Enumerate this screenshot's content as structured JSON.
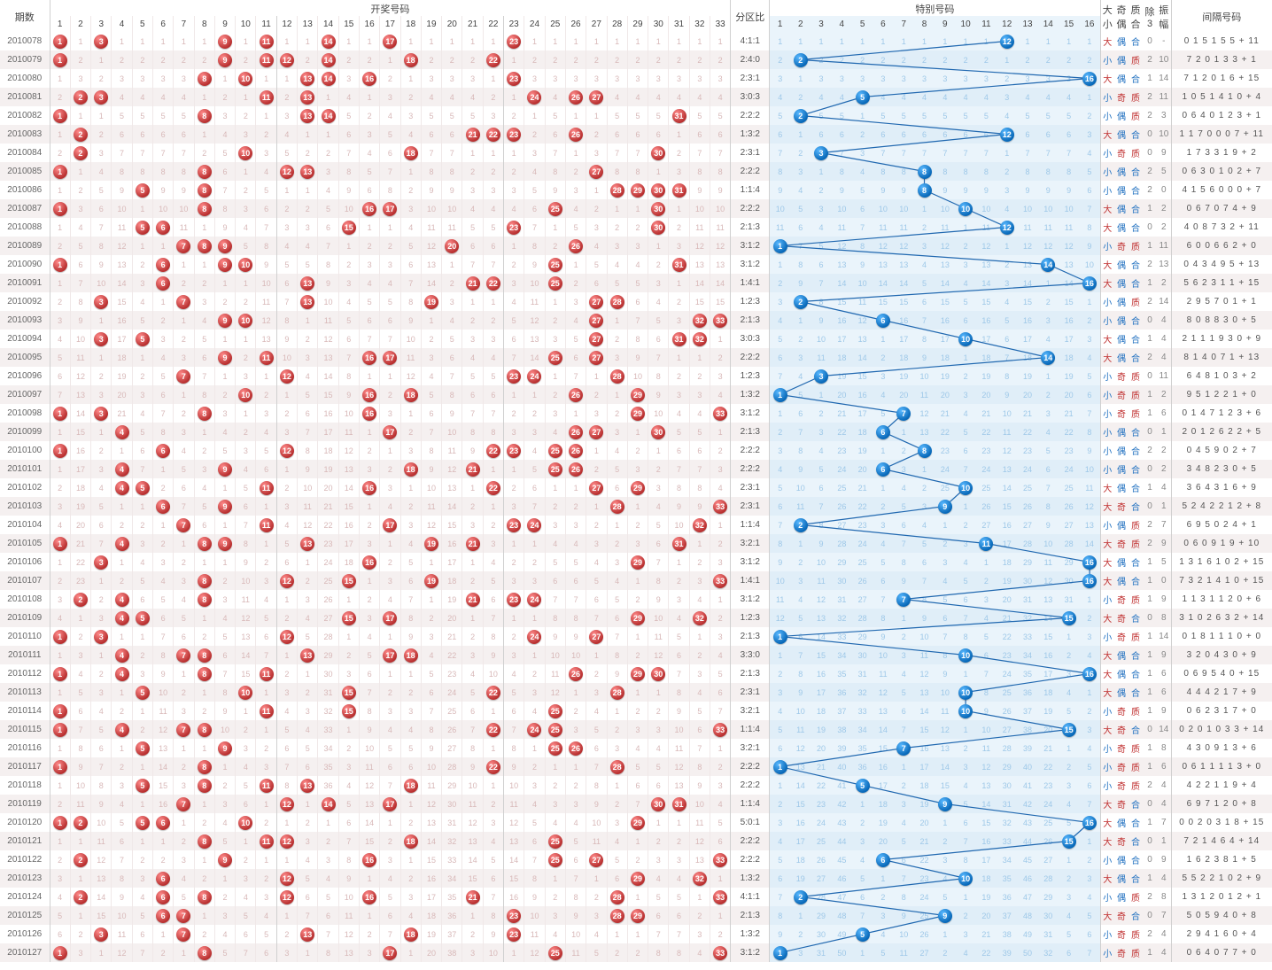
{
  "meta": {
    "red_count": 33,
    "blue_count": 16,
    "colors": {
      "red_ball_light": "#ff8a8a",
      "red_ball_dark": "#b83030",
      "blue_ball_light": "#58b8ff",
      "blue_ball_dark": "#0868b8",
      "dim_red": "#d8b8b8",
      "dim_blue": "#9ec8e8",
      "row_alt": "#f5f0f0",
      "blue_zone": "#eaf4fb",
      "line": "#2068b0",
      "attr_red": "#c03030",
      "attr_blue": "#2070c0"
    }
  },
  "headers": {
    "period": "期数",
    "draw": "开奖号码",
    "ratio": "分区比",
    "special": "特别号码",
    "attrs": [
      "大小",
      "奇偶",
      "质合",
      "除3",
      "振幅"
    ],
    "interval": "间隔号码"
  },
  "attr_labels": {
    "big": "大",
    "small": "小",
    "odd": "奇",
    "even": "偶",
    "prime": "质",
    "comp": "合"
  },
  "rows": [
    {
      "period": "2010078",
      "reds": [
        1,
        3,
        9,
        11,
        14,
        17,
        23
      ],
      "ratio": "4:1:1",
      "blue": 12,
      "attrs": [
        "大",
        "偶",
        "合",
        "0",
        "-"
      ],
      "interval": "0 1 5 1 5 5 + 11"
    },
    {
      "period": "2010079",
      "reds": [
        1,
        9,
        11,
        12,
        14,
        18,
        22
      ],
      "ratio": "2:4:0",
      "blue": 2,
      "attrs": [
        "小",
        "偶",
        "质",
        "2",
        "10"
      ],
      "interval": "7 2 0 1 3 3 + 1"
    },
    {
      "period": "2010080",
      "reds": [
        8,
        10,
        13,
        14,
        16,
        23
      ],
      "ratio": "2:3:1",
      "blue": 16,
      "attrs": [
        "大",
        "偶",
        "合",
        "1",
        "14"
      ],
      "interval": "7 1 2 0 1 6 + 15"
    },
    {
      "period": "2010081",
      "reds": [
        2,
        3,
        11,
        13,
        24,
        26,
        27
      ],
      "ratio": "3:0:3",
      "blue": 5,
      "attrs": [
        "小",
        "奇",
        "质",
        "2",
        "11"
      ],
      "interval": "1 0 5 1 4 1 0 + 4"
    },
    {
      "period": "2010082",
      "reds": [
        1,
        8,
        13,
        14,
        31
      ],
      "ratio": "2:2:2",
      "blue": 2,
      "attrs": [
        "小",
        "偶",
        "质",
        "2",
        "3"
      ],
      "interval": "0 6 4 0 1 2 3 + 1"
    },
    {
      "period": "2010083",
      "reds": [
        2,
        21,
        22,
        23,
        26
      ],
      "ratio": "1:3:2",
      "blue": 12,
      "attrs": [
        "大",
        "偶",
        "合",
        "0",
        "10"
      ],
      "interval": "1 1 7 0 0 0 7 + 11"
    },
    {
      "period": "2010084",
      "reds": [
        2,
        10,
        18,
        30
      ],
      "ratio": "2:3:1",
      "blue": 3,
      "attrs": [
        "小",
        "奇",
        "质",
        "0",
        "9"
      ],
      "interval": "1 7 3 3 1 9 + 2"
    },
    {
      "period": "2010085",
      "reds": [
        1,
        8,
        12,
        13,
        27
      ],
      "ratio": "2:2:2",
      "blue": 8,
      "attrs": [
        "小",
        "偶",
        "合",
        "2",
        "5"
      ],
      "interval": "0 6 3 0 1 0 2 + 7"
    },
    {
      "period": "2010086",
      "reds": [
        5,
        8,
        28,
        29,
        30,
        31
      ],
      "ratio": "1:1:4",
      "blue": 8,
      "attrs": [
        "小",
        "偶",
        "合",
        "2",
        "0"
      ],
      "interval": "4 1 5 6 0 0 0 + 7"
    },
    {
      "period": "2010087",
      "reds": [
        1,
        8,
        16,
        17,
        25,
        30
      ],
      "ratio": "2:2:2",
      "blue": 10,
      "attrs": [
        "大",
        "偶",
        "合",
        "1",
        "2"
      ],
      "interval": "0 6 7 0 7 4 + 9"
    },
    {
      "period": "2010088",
      "reds": [
        5,
        6,
        15,
        23,
        30
      ],
      "ratio": "2:1:3",
      "blue": 12,
      "attrs": [
        "大",
        "偶",
        "合",
        "0",
        "2"
      ],
      "interval": "4 0 8 7 3 2 + 11"
    },
    {
      "period": "2010089",
      "reds": [
        7,
        8,
        9,
        20,
        26
      ],
      "ratio": "3:1:2",
      "blue": 1,
      "attrs": [
        "小",
        "奇",
        "质",
        "1",
        "11"
      ],
      "interval": "6 0 0 6 6 2 + 0"
    },
    {
      "period": "2010090",
      "reds": [
        1,
        6,
        9,
        10,
        25,
        31
      ],
      "ratio": "3:1:2",
      "blue": 14,
      "attrs": [
        "大",
        "偶",
        "合",
        "2",
        "13"
      ],
      "interval": "0 4 3 4 9 5 + 13"
    },
    {
      "period": "2010091",
      "reds": [
        6,
        13,
        21,
        22,
        25
      ],
      "ratio": "1:4:1",
      "blue": 16,
      "attrs": [
        "大",
        "偶",
        "合",
        "1",
        "2"
      ],
      "interval": "5 6 2 3 1 1 + 15"
    },
    {
      "period": "2010092",
      "reds": [
        3,
        7,
        13,
        19,
        27,
        28
      ],
      "ratio": "1:2:3",
      "blue": 2,
      "attrs": [
        "小",
        "偶",
        "质",
        "2",
        "14"
      ],
      "interval": "2 9 5 7 0 1 + 1"
    },
    {
      "period": "2010093",
      "reds": [
        9,
        10,
        27,
        32,
        33
      ],
      "ratio": "2:1:3",
      "blue": 6,
      "attrs": [
        "小",
        "偶",
        "合",
        "0",
        "4"
      ],
      "interval": "8 0 8 8 3 0 + 5"
    },
    {
      "period": "2010094",
      "reds": [
        3,
        5,
        27,
        31,
        32
      ],
      "ratio": "3:0:3",
      "blue": 10,
      "attrs": [
        "大",
        "偶",
        "合",
        "1",
        "4"
      ],
      "interval": "2 1 1 1 9 3 0 + 9"
    },
    {
      "period": "2010095",
      "reds": [
        9,
        11,
        16,
        17,
        25,
        27
      ],
      "ratio": "2:2:2",
      "blue": 14,
      "attrs": [
        "大",
        "偶",
        "合",
        "2",
        "4"
      ],
      "interval": "8 1 4 0 7 1 + 13"
    },
    {
      "period": "2010096",
      "reds": [
        7,
        12,
        23,
        24,
        28
      ],
      "ratio": "1:2:3",
      "blue": 3,
      "attrs": [
        "小",
        "奇",
        "质",
        "0",
        "11"
      ],
      "interval": "6 4 8 1 0 3 + 2"
    },
    {
      "period": "2010097",
      "reds": [
        10,
        16,
        18,
        26,
        29
      ],
      "ratio": "1:3:2",
      "blue": 1,
      "attrs": [
        "小",
        "奇",
        "质",
        "1",
        "2"
      ],
      "interval": "9 5 1 2 2 1 + 0"
    },
    {
      "period": "2010098",
      "reds": [
        1,
        3,
        8,
        16,
        29,
        33
      ],
      "ratio": "3:1:2",
      "blue": 7,
      "attrs": [
        "小",
        "奇",
        "质",
        "1",
        "6"
      ],
      "interval": "0 1 4 7 1 2 3 + 6"
    },
    {
      "period": "2010099",
      "reds": [
        4,
        17,
        26,
        27,
        30
      ],
      "ratio": "2:1:3",
      "blue": 6,
      "attrs": [
        "小",
        "偶",
        "合",
        "0",
        "1"
      ],
      "interval": "2 0 1 2 6 2 2 + 5"
    },
    {
      "period": "2010100",
      "reds": [
        1,
        6,
        12,
        22,
        23,
        25,
        26
      ],
      "ratio": "2:2:2",
      "blue": 8,
      "attrs": [
        "小",
        "偶",
        "合",
        "2",
        "2"
      ],
      "interval": "0 4 5 9 0 2 + 7"
    },
    {
      "period": "2010101",
      "reds": [
        4,
        9,
        18,
        21,
        25,
        26
      ],
      "ratio": "2:2:2",
      "blue": 6,
      "attrs": [
        "小",
        "偶",
        "合",
        "0",
        "2"
      ],
      "interval": "3 4 8 2 3 0 + 5"
    },
    {
      "period": "2010102",
      "reds": [
        4,
        5,
        11,
        16,
        22,
        27,
        29
      ],
      "ratio": "2:3:1",
      "blue": 10,
      "attrs": [
        "大",
        "偶",
        "合",
        "1",
        "4"
      ],
      "interval": "3 6 4 3 1 6 + 9"
    },
    {
      "period": "2010103",
      "reds": [
        6,
        9,
        28,
        33
      ],
      "ratio": "2:3:1",
      "blue": 9,
      "attrs": [
        "大",
        "奇",
        "合",
        "0",
        "1"
      ],
      "interval": "5 2 4 2 2 1 2 + 8"
    },
    {
      "period": "2010104",
      "reds": [
        7,
        11,
        17,
        23,
        24,
        32
      ],
      "ratio": "1:1:4",
      "blue": 2,
      "attrs": [
        "小",
        "偶",
        "质",
        "2",
        "7"
      ],
      "interval": "6 9 5 0 2 4 + 1"
    },
    {
      "period": "2010105",
      "reds": [
        1,
        4,
        8,
        9,
        13,
        19,
        21,
        31
      ],
      "ratio": "3:2:1",
      "blue": 11,
      "attrs": [
        "大",
        "奇",
        "质",
        "2",
        "9"
      ],
      "interval": "0 6 0 9 1 9 + 10"
    },
    {
      "period": "2010106",
      "reds": [
        3,
        16,
        29
      ],
      "ratio": "3:1:2",
      "blue": 16,
      "attrs": [
        "大",
        "偶",
        "合",
        "1",
        "5"
      ],
      "interval": "1 3 1 6 1 0 2 + 15"
    },
    {
      "period": "2010107",
      "reds": [
        8,
        12,
        15,
        19,
        33
      ],
      "ratio": "1:4:1",
      "blue": 16,
      "attrs": [
        "大",
        "偶",
        "合",
        "1",
        "0"
      ],
      "interval": "7 3 2 1 4 1 0 + 15"
    },
    {
      "period": "2010108",
      "reds": [
        2,
        4,
        8,
        21,
        23,
        24
      ],
      "ratio": "3:1:2",
      "blue": 7,
      "attrs": [
        "小",
        "奇",
        "质",
        "1",
        "9"
      ],
      "interval": "1 1 3 1 1 2 0 + 6"
    },
    {
      "period": "2010109",
      "reds": [
        4,
        5,
        15,
        17,
        29,
        32
      ],
      "ratio": "1:2:3",
      "blue": 15,
      "attrs": [
        "大",
        "奇",
        "合",
        "0",
        "8"
      ],
      "interval": "3 1 0 2 6 3 2 + 14"
    },
    {
      "period": "2010110",
      "reds": [
        1,
        3,
        12,
        24,
        27
      ],
      "ratio": "2:1:3",
      "blue": 1,
      "attrs": [
        "小",
        "奇",
        "质",
        "1",
        "14"
      ],
      "interval": "0 1 8 1 1 1 0 + 0"
    },
    {
      "period": "2010111",
      "reds": [
        4,
        7,
        8,
        13,
        17,
        18
      ],
      "ratio": "3:3:0",
      "blue": 10,
      "attrs": [
        "大",
        "偶",
        "合",
        "1",
        "9"
      ],
      "interval": "3 2 0 4 3 0 + 9"
    },
    {
      "period": "2010112",
      "reds": [
        1,
        4,
        8,
        11,
        26,
        29,
        30
      ],
      "ratio": "2:1:3",
      "blue": 16,
      "attrs": [
        "大",
        "偶",
        "合",
        "1",
        "6"
      ],
      "interval": "0 6 9 5 4 0 + 15"
    },
    {
      "period": "2010113",
      "reds": [
        5,
        10,
        15,
        22,
        28
      ],
      "ratio": "2:3:1",
      "blue": 10,
      "attrs": [
        "大",
        "偶",
        "合",
        "1",
        "6"
      ],
      "interval": "4 4 4 2 1 7 + 9"
    },
    {
      "period": "2010114",
      "reds": [
        1,
        11,
        15,
        25
      ],
      "ratio": "3:2:1",
      "blue": 10,
      "attrs": [
        "小",
        "奇",
        "质",
        "1",
        "9"
      ],
      "interval": "0 6 2 3 1 7 + 0"
    },
    {
      "period": "2010115",
      "reds": [
        1,
        4,
        7,
        8,
        22,
        24,
        25,
        33
      ],
      "ratio": "1:1:4",
      "blue": 15,
      "attrs": [
        "大",
        "奇",
        "合",
        "0",
        "14"
      ],
      "interval": "0 2 0 1 0 3 3 + 14"
    },
    {
      "period": "2010116",
      "reds": [
        5,
        9,
        25,
        26
      ],
      "ratio": "3:2:1",
      "blue": 7,
      "attrs": [
        "小",
        "奇",
        "质",
        "1",
        "8"
      ],
      "interval": "4 3 0 9 1 3 + 6"
    },
    {
      "period": "2010117",
      "reds": [
        1,
        8,
        22,
        28
      ],
      "ratio": "2:2:2",
      "blue": 1,
      "attrs": [
        "小",
        "奇",
        "质",
        "1",
        "6"
      ],
      "interval": "0 6 1 1 1 1 3 + 0"
    },
    {
      "period": "2010118",
      "reds": [
        5,
        8,
        11,
        13,
        18
      ],
      "ratio": "2:2:2",
      "blue": 5,
      "attrs": [
        "小",
        "奇",
        "质",
        "2",
        "4"
      ],
      "interval": "4 2 2 1 1 9 + 4"
    },
    {
      "period": "2010119",
      "reds": [
        7,
        12,
        14,
        17,
        30,
        31
      ],
      "ratio": "1:1:4",
      "blue": 9,
      "attrs": [
        "大",
        "奇",
        "合",
        "0",
        "4"
      ],
      "interval": "6 9 7 1 2 0 + 8"
    },
    {
      "period": "2010120",
      "reds": [
        1,
        2,
        5,
        6,
        10,
        29
      ],
      "ratio": "5:0:1",
      "blue": 16,
      "attrs": [
        "大",
        "偶",
        "合",
        "1",
        "7"
      ],
      "interval": "0 0 2 0 3 1 8 + 15"
    },
    {
      "period": "2010121",
      "reds": [
        8,
        11,
        12,
        18,
        25
      ],
      "ratio": "2:2:2",
      "blue": 15,
      "attrs": [
        "大",
        "奇",
        "合",
        "0",
        "1"
      ],
      "interval": "7 2 1 4 6 4 + 14"
    },
    {
      "period": "2010122",
      "reds": [
        2,
        9,
        16,
        25,
        27,
        33
      ],
      "ratio": "2:2:2",
      "blue": 6,
      "attrs": [
        "小",
        "偶",
        "合",
        "0",
        "9"
      ],
      "interval": "1 6 2 3 8 1 + 5"
    },
    {
      "period": "2010123",
      "reds": [
        6,
        12,
        29,
        32
      ],
      "ratio": "1:3:2",
      "blue": 10,
      "attrs": [
        "大",
        "偶",
        "合",
        "1",
        "4"
      ],
      "interval": "5 5 2 2 1 0 2 + 9"
    },
    {
      "period": "2010124",
      "reds": [
        2,
        6,
        8,
        12,
        16,
        21,
        28,
        33
      ],
      "ratio": "4:1:1",
      "blue": 2,
      "attrs": [
        "小",
        "偶",
        "质",
        "2",
        "8"
      ],
      "interval": "1 3 1 2 0 1 2 + 1"
    },
    {
      "period": "2010125",
      "reds": [
        6,
        7,
        23,
        28,
        29
      ],
      "ratio": "2:1:3",
      "blue": 9,
      "attrs": [
        "大",
        "奇",
        "合",
        "0",
        "7"
      ],
      "interval": "5 0 5 9 4 0 + 8"
    },
    {
      "period": "2010126",
      "reds": [
        3,
        7,
        13,
        18,
        23
      ],
      "ratio": "1:3:2",
      "blue": 5,
      "attrs": [
        "小",
        "奇",
        "质",
        "2",
        "4"
      ],
      "interval": "2 9 4 1 6 0 + 4"
    },
    {
      "period": "2010127",
      "reds": [
        1,
        8,
        17,
        25,
        33
      ],
      "ratio": "3:1:2",
      "blue": 1,
      "attrs": [
        "小",
        "奇",
        "质",
        "1",
        "4"
      ],
      "interval": "0 6 4 0 7 7 + 0"
    }
  ]
}
